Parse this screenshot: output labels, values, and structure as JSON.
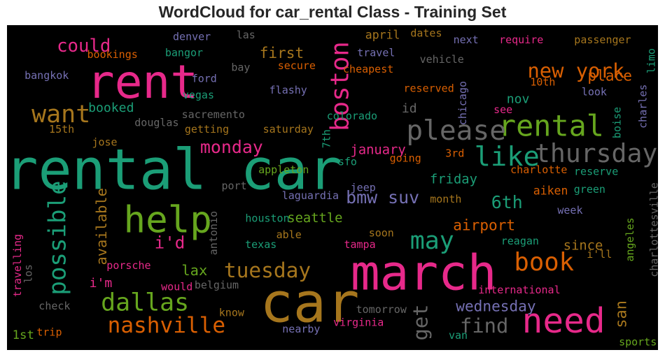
{
  "title": "WordCloud for car_rental Class - Training Set",
  "chart_data": {
    "type": "wordcloud",
    "title": "WordCloud for car_rental Class - Training Set",
    "background": "#000000",
    "colormap": "Dark2",
    "words": [
      {
        "text": "rental car",
        "size": 1.0,
        "color": "#1b9e77",
        "x": 0.255,
        "y": 0.445,
        "rot": 0
      },
      {
        "text": "car",
        "size": 0.98,
        "color": "#a6761d",
        "x": 0.465,
        "y": 0.855,
        "rot": 0
      },
      {
        "text": "march",
        "size": 0.86,
        "color": "#e7298a",
        "x": 0.64,
        "y": 0.765,
        "rot": 0
      },
      {
        "text": "rent",
        "size": 0.82,
        "color": "#e7298a",
        "x": 0.208,
        "y": 0.175,
        "rot": 0
      },
      {
        "text": "help",
        "size": 0.64,
        "color": "#66a61e",
        "x": 0.247,
        "y": 0.6,
        "rot": 0
      },
      {
        "text": "need",
        "size": 0.6,
        "color": "#e7298a",
        "x": 0.855,
        "y": 0.91,
        "rot": 0
      },
      {
        "text": "rental",
        "size": 0.5,
        "color": "#66a61e",
        "x": 0.836,
        "y": 0.31,
        "rot": 0
      },
      {
        "text": "please",
        "size": 0.47,
        "color": "#666666",
        "x": 0.69,
        "y": 0.325,
        "rot": 0
      },
      {
        "text": "like",
        "size": 0.46,
        "color": "#1b9e77",
        "x": 0.768,
        "y": 0.405,
        "rot": 0
      },
      {
        "text": "thursday",
        "size": 0.43,
        "color": "#666666",
        "x": 0.905,
        "y": 0.395,
        "rot": 0
      },
      {
        "text": "book",
        "size": 0.42,
        "color": "#d95f02",
        "x": 0.825,
        "y": 0.73,
        "rot": 0
      },
      {
        "text": "boston",
        "size": 0.42,
        "color": "#e7298a",
        "x": 0.512,
        "y": 0.188,
        "rot": -90
      },
      {
        "text": "want",
        "size": 0.41,
        "color": "#a6761d",
        "x": 0.083,
        "y": 0.275,
        "rot": 0
      },
      {
        "text": "dallas",
        "size": 0.41,
        "color": "#66a61e",
        "x": 0.212,
        "y": 0.855,
        "rot": 0
      },
      {
        "text": "may",
        "size": 0.41,
        "color": "#1b9e77",
        "x": 0.653,
        "y": 0.665,
        "rot": 0
      },
      {
        "text": "possible",
        "size": 0.4,
        "color": "#1b9e77",
        "x": 0.078,
        "y": 0.655,
        "rot": -90
      },
      {
        "text": "nashville",
        "size": 0.36,
        "color": "#d95f02",
        "x": 0.245,
        "y": 0.925,
        "rot": 0
      },
      {
        "text": "tuesday",
        "size": 0.34,
        "color": "#a6761d",
        "x": 0.4,
        "y": 0.755,
        "rot": 0
      },
      {
        "text": "new york",
        "size": 0.33,
        "color": "#d95f02",
        "x": 0.874,
        "y": 0.14,
        "rot": 0
      },
      {
        "text": "get",
        "size": 0.33,
        "color": "#666666",
        "x": 0.635,
        "y": 0.915,
        "rot": -90
      },
      {
        "text": "find",
        "size": 0.33,
        "color": "#666666",
        "x": 0.733,
        "y": 0.925,
        "rot": 0
      },
      {
        "text": "could",
        "size": 0.29,
        "color": "#e7298a",
        "x": 0.118,
        "y": 0.065,
        "rot": 0
      },
      {
        "text": "bmw suv",
        "size": 0.28,
        "color": "#7570b3",
        "x": 0.577,
        "y": 0.53,
        "rot": 0
      },
      {
        "text": "monday",
        "size": 0.28,
        "color": "#e7298a",
        "x": 0.345,
        "y": 0.375,
        "rot": 0
      },
      {
        "text": "6th",
        "size": 0.28,
        "color": "#1b9e77",
        "x": 0.768,
        "y": 0.545,
        "rot": 0
      },
      {
        "text": "i'd",
        "size": 0.27,
        "color": "#e7298a",
        "x": 0.25,
        "y": 0.67,
        "rot": 0
      },
      {
        "text": "first",
        "size": 0.23,
        "color": "#a6761d",
        "x": 0.422,
        "y": 0.085,
        "rot": 0
      },
      {
        "text": "place",
        "size": 0.23,
        "color": "#d95f02",
        "x": 0.926,
        "y": 0.155,
        "rot": 0
      },
      {
        "text": "san",
        "size": 0.24,
        "color": "#a6761d",
        "x": 0.944,
        "y": 0.89,
        "rot": -90
      },
      {
        "text": "wednesday",
        "size": 0.23,
        "color": "#7570b3",
        "x": 0.751,
        "y": 0.865,
        "rot": 0
      },
      {
        "text": "airport",
        "size": 0.23,
        "color": "#d95f02",
        "x": 0.733,
        "y": 0.615,
        "rot": 0
      },
      {
        "text": "lax",
        "size": 0.22,
        "color": "#66a61e",
        "x": 0.288,
        "y": 0.755,
        "rot": 0
      },
      {
        "text": "available",
        "size": 0.22,
        "color": "#a6761d",
        "x": 0.145,
        "y": 0.62,
        "rot": -90
      },
      {
        "text": "friday",
        "size": 0.2,
        "color": "#1b9e77",
        "x": 0.686,
        "y": 0.475,
        "rot": 0
      },
      {
        "text": "january",
        "size": 0.2,
        "color": "#e7298a",
        "x": 0.57,
        "y": 0.385,
        "rot": 0
      },
      {
        "text": "since",
        "size": 0.2,
        "color": "#a6761d",
        "x": 0.885,
        "y": 0.68,
        "rot": 0
      },
      {
        "text": "seattle",
        "size": 0.2,
        "color": "#66a61e",
        "x": 0.473,
        "y": 0.595,
        "rot": 0
      },
      {
        "text": "booked",
        "size": 0.19,
        "color": "#1b9e77",
        "x": 0.16,
        "y": 0.255,
        "rot": 0
      },
      {
        "text": "nov",
        "size": 0.19,
        "color": "#1b9e77",
        "x": 0.785,
        "y": 0.228,
        "rot": 0
      },
      {
        "text": "i'm",
        "size": 0.19,
        "color": "#e7298a",
        "x": 0.144,
        "y": 0.795,
        "rot": 0
      },
      {
        "text": "id",
        "size": 0.19,
        "color": "#666666",
        "x": 0.618,
        "y": 0.257,
        "rot": 0
      },
      {
        "text": "1st",
        "size": 0.18,
        "color": "#66a61e",
        "x": 0.025,
        "y": 0.955,
        "rot": 0
      },
      {
        "text": "april",
        "size": 0.17,
        "color": "#a6761d",
        "x": 0.577,
        "y": 0.03,
        "rot": 0
      },
      {
        "text": "aiken",
        "size": 0.17,
        "color": "#d95f02",
        "x": 0.835,
        "y": 0.51,
        "rot": 0
      },
      {
        "text": "travelling",
        "size": 0.15,
        "color": "#e7298a",
        "x": 0.016,
        "y": 0.74,
        "rot": -90
      },
      {
        "text": "charlottesville",
        "size": 0.15,
        "color": "#666666",
        "x": 0.994,
        "y": 0.63,
        "rot": -90
      },
      {
        "text": "denver",
        "size": 0.15,
        "color": "#7570b3",
        "x": 0.284,
        "y": 0.035,
        "rot": 0
      },
      {
        "text": "las",
        "size": 0.15,
        "color": "#666666",
        "x": 0.367,
        "y": 0.03,
        "rot": 0
      },
      {
        "text": "dates",
        "size": 0.15,
        "color": "#a6761d",
        "x": 0.644,
        "y": 0.025,
        "rot": 0
      },
      {
        "text": "next",
        "size": 0.15,
        "color": "#7570b3",
        "x": 0.705,
        "y": 0.045,
        "rot": 0
      },
      {
        "text": "require",
        "size": 0.15,
        "color": "#e7298a",
        "x": 0.79,
        "y": 0.045,
        "rot": 0
      },
      {
        "text": "passenger",
        "size": 0.15,
        "color": "#a6761d",
        "x": 0.915,
        "y": 0.045,
        "rot": 0
      },
      {
        "text": "limo",
        "size": 0.15,
        "color": "#1b9e77",
        "x": 0.99,
        "y": 0.11,
        "rot": -90
      },
      {
        "text": "bookings",
        "size": 0.15,
        "color": "#d95f02",
        "x": 0.162,
        "y": 0.09,
        "rot": 0
      },
      {
        "text": "bangor",
        "size": 0.15,
        "color": "#1b9e77",
        "x": 0.272,
        "y": 0.085,
        "rot": 0
      },
      {
        "text": "travel",
        "size": 0.15,
        "color": "#7570b3",
        "x": 0.567,
        "y": 0.085,
        "rot": 0
      },
      {
        "text": "vehicle",
        "size": 0.15,
        "color": "#666666",
        "x": 0.668,
        "y": 0.105,
        "rot": 0
      },
      {
        "text": "bay",
        "size": 0.15,
        "color": "#666666",
        "x": 0.359,
        "y": 0.13,
        "rot": 0
      },
      {
        "text": "secure",
        "size": 0.15,
        "color": "#d95f02",
        "x": 0.445,
        "y": 0.125,
        "rot": 0
      },
      {
        "text": "cheapest",
        "size": 0.15,
        "color": "#d95f02",
        "x": 0.555,
        "y": 0.135,
        "rot": 0
      },
      {
        "text": "bangkok",
        "size": 0.15,
        "color": "#7570b3",
        "x": 0.061,
        "y": 0.155,
        "rot": 0
      },
      {
        "text": "ford",
        "size": 0.15,
        "color": "#7570b3",
        "x": 0.303,
        "y": 0.165,
        "rot": 0
      },
      {
        "text": "vegas",
        "size": 0.15,
        "color": "#1b9e77",
        "x": 0.294,
        "y": 0.215,
        "rot": 0
      },
      {
        "text": "flashy",
        "size": 0.15,
        "color": "#7570b3",
        "x": 0.432,
        "y": 0.2,
        "rot": 0
      },
      {
        "text": "reserved",
        "size": 0.15,
        "color": "#d95f02",
        "x": 0.648,
        "y": 0.195,
        "rot": 0
      },
      {
        "text": "chicago",
        "size": 0.15,
        "color": "#7570b3",
        "x": 0.7,
        "y": 0.24,
        "rot": -90
      },
      {
        "text": "10th",
        "size": 0.15,
        "color": "#d95f02",
        "x": 0.823,
        "y": 0.175,
        "rot": 0
      },
      {
        "text": "look",
        "size": 0.15,
        "color": "#7570b3",
        "x": 0.902,
        "y": 0.205,
        "rot": 0
      },
      {
        "text": "charles",
        "size": 0.15,
        "color": "#7570b3",
        "x": 0.977,
        "y": 0.25,
        "rot": -90
      },
      {
        "text": "see",
        "size": 0.15,
        "color": "#e7298a",
        "x": 0.762,
        "y": 0.26,
        "rot": 0
      },
      {
        "text": "boise",
        "size": 0.15,
        "color": "#1b9e77",
        "x": 0.937,
        "y": 0.3,
        "rot": -90
      },
      {
        "text": "sacremento",
        "size": 0.15,
        "color": "#666666",
        "x": 0.317,
        "y": 0.275,
        "rot": 0
      },
      {
        "text": "colorado",
        "size": 0.15,
        "color": "#1b9e77",
        "x": 0.53,
        "y": 0.28,
        "rot": 0
      },
      {
        "text": "douglas",
        "size": 0.15,
        "color": "#666666",
        "x": 0.23,
        "y": 0.3,
        "rot": 0
      },
      {
        "text": "getting",
        "size": 0.15,
        "color": "#a6761d",
        "x": 0.307,
        "y": 0.32,
        "rot": 0
      },
      {
        "text": "saturday",
        "size": 0.15,
        "color": "#a6761d",
        "x": 0.432,
        "y": 0.32,
        "rot": 0
      },
      {
        "text": "15th",
        "size": 0.15,
        "color": "#a6761d",
        "x": 0.084,
        "y": 0.32,
        "rot": 0
      },
      {
        "text": "7th",
        "size": 0.15,
        "color": "#1b9e77",
        "x": 0.491,
        "y": 0.35,
        "rot": -90
      },
      {
        "text": "jose",
        "size": 0.15,
        "color": "#a6761d",
        "x": 0.15,
        "y": 0.36,
        "rot": 0
      },
      {
        "text": "3rd",
        "size": 0.15,
        "color": "#d95f02",
        "x": 0.688,
        "y": 0.395,
        "rot": 0
      },
      {
        "text": "going",
        "size": 0.15,
        "color": "#d95f02",
        "x": 0.612,
        "y": 0.41,
        "rot": 0
      },
      {
        "text": "sfo",
        "size": 0.15,
        "color": "#1b9e77",
        "x": 0.523,
        "y": 0.42,
        "rot": 0
      },
      {
        "text": "charlotte",
        "size": 0.15,
        "color": "#d95f02",
        "x": 0.817,
        "y": 0.445,
        "rot": 0
      },
      {
        "text": "reserve",
        "size": 0.15,
        "color": "#1b9e77",
        "x": 0.905,
        "y": 0.45,
        "rot": 0
      },
      {
        "text": "appleton",
        "size": 0.15,
        "color": "#66a61e",
        "x": 0.425,
        "y": 0.445,
        "rot": 0
      },
      {
        "text": "jeep",
        "size": 0.15,
        "color": "#7570b3",
        "x": 0.547,
        "y": 0.5,
        "rot": 0
      },
      {
        "text": "port",
        "size": 0.15,
        "color": "#666666",
        "x": 0.349,
        "y": 0.495,
        "rot": 0
      },
      {
        "text": "green",
        "size": 0.15,
        "color": "#1b9e77",
        "x": 0.895,
        "y": 0.505,
        "rot": 0
      },
      {
        "text": "laguardia",
        "size": 0.15,
        "color": "#7570b3",
        "x": 0.466,
        "y": 0.525,
        "rot": 0
      },
      {
        "text": "month",
        "size": 0.15,
        "color": "#a6761d",
        "x": 0.674,
        "y": 0.535,
        "rot": 0
      },
      {
        "text": "week",
        "size": 0.15,
        "color": "#7570b3",
        "x": 0.865,
        "y": 0.57,
        "rot": 0
      },
      {
        "text": "antonio",
        "size": 0.15,
        "color": "#666666",
        "x": 0.317,
        "y": 0.64,
        "rot": -90
      },
      {
        "text": "houston",
        "size": 0.15,
        "color": "#1b9e77",
        "x": 0.4,
        "y": 0.595,
        "rot": 0
      },
      {
        "text": "angeles",
        "size": 0.15,
        "color": "#66a61e",
        "x": 0.957,
        "y": 0.66,
        "rot": -90
      },
      {
        "text": "able",
        "size": 0.15,
        "color": "#a6761d",
        "x": 0.433,
        "y": 0.645,
        "rot": 0
      },
      {
        "text": "soon",
        "size": 0.15,
        "color": "#a6761d",
        "x": 0.575,
        "y": 0.64,
        "rot": 0
      },
      {
        "text": "texas",
        "size": 0.15,
        "color": "#1b9e77",
        "x": 0.39,
        "y": 0.675,
        "rot": 0
      },
      {
        "text": "tampa",
        "size": 0.15,
        "color": "#e7298a",
        "x": 0.542,
        "y": 0.675,
        "rot": 0
      },
      {
        "text": "reagan",
        "size": 0.15,
        "color": "#1b9e77",
        "x": 0.788,
        "y": 0.665,
        "rot": 0
      },
      {
        "text": "i'll",
        "size": 0.15,
        "color": "#a6761d",
        "x": 0.91,
        "y": 0.705,
        "rot": 0
      },
      {
        "text": "porsche",
        "size": 0.15,
        "color": "#e7298a",
        "x": 0.187,
        "y": 0.74,
        "rot": 0
      },
      {
        "text": "los",
        "size": 0.15,
        "color": "#666666",
        "x": 0.033,
        "y": 0.765,
        "rot": -90
      },
      {
        "text": "belgium",
        "size": 0.15,
        "color": "#666666",
        "x": 0.322,
        "y": 0.8,
        "rot": 0
      },
      {
        "text": "would",
        "size": 0.15,
        "color": "#e7298a",
        "x": 0.261,
        "y": 0.805,
        "rot": 0
      },
      {
        "text": "international",
        "size": 0.15,
        "color": "#e7298a",
        "x": 0.787,
        "y": 0.815,
        "rot": 0
      },
      {
        "text": "check",
        "size": 0.15,
        "color": "#666666",
        "x": 0.073,
        "y": 0.865,
        "rot": 0
      },
      {
        "text": "know",
        "size": 0.15,
        "color": "#a6761d",
        "x": 0.345,
        "y": 0.885,
        "rot": 0
      },
      {
        "text": "tomorrow",
        "size": 0.15,
        "color": "#666666",
        "x": 0.575,
        "y": 0.875,
        "rot": 0
      },
      {
        "text": "virginia",
        "size": 0.15,
        "color": "#e7298a",
        "x": 0.54,
        "y": 0.915,
        "rot": 0
      },
      {
        "text": "nearby",
        "size": 0.15,
        "color": "#7570b3",
        "x": 0.452,
        "y": 0.935,
        "rot": 0
      },
      {
        "text": "trip",
        "size": 0.15,
        "color": "#d95f02",
        "x": 0.065,
        "y": 0.945,
        "rot": 0
      },
      {
        "text": "van",
        "size": 0.15,
        "color": "#1b9e77",
        "x": 0.693,
        "y": 0.955,
        "rot": 0
      },
      {
        "text": "sports",
        "size": 0.15,
        "color": "#66a61e",
        "x": 0.969,
        "y": 0.975,
        "rot": 0
      }
    ]
  }
}
